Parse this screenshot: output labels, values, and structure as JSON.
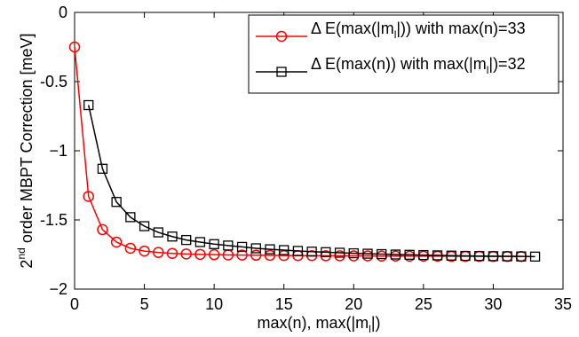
{
  "chart_data": {
    "type": "line",
    "title": "",
    "xlabel_parts": {
      "main": "max(n), max(|m",
      "sub": "l",
      "tail": "|)"
    },
    "ylabel_parts": {
      "pre": "2",
      "sup": "nd",
      "post": " order MBPT Correction  [meV]"
    },
    "xlim": [
      0,
      35
    ],
    "ylim": [
      -2,
      0
    ],
    "xticks": [
      0,
      5,
      10,
      15,
      20,
      25,
      30,
      35
    ],
    "yticks": [
      0,
      -0.5,
      -1,
      -1.5,
      -2
    ],
    "ytick_labels": [
      "0",
      "-0.5",
      "−1",
      "-1.5",
      "−2"
    ],
    "grid": false,
    "legend_position": "top-right",
    "series": [
      {
        "name_main": "Δ E(max(|m",
        "name_sub": "l",
        "name_tail": "|)) with max(n)=33",
        "color": "#ff0000",
        "marker": "circle",
        "x": [
          0,
          1,
          2,
          3,
          4,
          5,
          6,
          7,
          8,
          9,
          10,
          11,
          12,
          13,
          14,
          15,
          16,
          17,
          18,
          19,
          20,
          21,
          22,
          23,
          24,
          25,
          26,
          27,
          28,
          29,
          30,
          31,
          32
        ],
        "y": [
          -0.25,
          -1.33,
          -1.57,
          -1.66,
          -1.705,
          -1.725,
          -1.735,
          -1.742,
          -1.746,
          -1.749,
          -1.751,
          -1.753,
          -1.754,
          -1.755,
          -1.756,
          -1.757,
          -1.758,
          -1.758,
          -1.759,
          -1.759,
          -1.76,
          -1.76,
          -1.761,
          -1.761,
          -1.762,
          -1.762,
          -1.762,
          -1.763,
          -1.763,
          -1.763,
          -1.764,
          -1.764,
          -1.764
        ]
      },
      {
        "name_main": "Δ E(max(n)) with max(|m",
        "name_sub": "l",
        "name_tail": "|)=32",
        "color": "#000000",
        "marker": "square",
        "x": [
          1,
          2,
          3,
          4,
          5,
          6,
          7,
          8,
          9,
          10,
          11,
          12,
          13,
          14,
          15,
          16,
          17,
          18,
          19,
          20,
          21,
          22,
          23,
          24,
          25,
          26,
          27,
          28,
          29,
          30,
          31,
          32,
          33
        ],
        "y": [
          -0.67,
          -1.13,
          -1.37,
          -1.48,
          -1.545,
          -1.59,
          -1.62,
          -1.645,
          -1.66,
          -1.675,
          -1.685,
          -1.695,
          -1.705,
          -1.712,
          -1.718,
          -1.724,
          -1.729,
          -1.733,
          -1.737,
          -1.741,
          -1.744,
          -1.747,
          -1.75,
          -1.752,
          -1.754,
          -1.756,
          -1.758,
          -1.76,
          -1.761,
          -1.762,
          -1.763,
          -1.764,
          -1.765
        ]
      }
    ]
  }
}
